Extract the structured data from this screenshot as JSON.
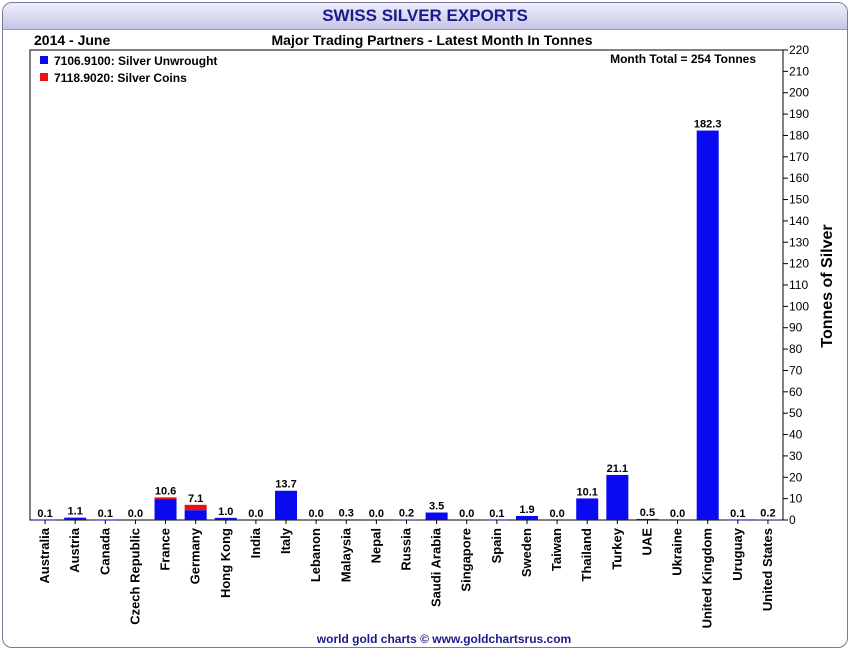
{
  "header": {
    "title": "SWISS SILVER EXPORTS",
    "period": "2014 - June",
    "subtitle": "Major Trading Partners - Latest Month In Tonnes",
    "month_total": "Month Total = 254 Tonnes",
    "footer": "world gold charts © www.goldchartsrus.com"
  },
  "colors": {
    "unwrought": "#0a0af0",
    "coins": "#ee1111",
    "title_text": "#1a1a8c"
  },
  "chart_data": {
    "type": "bar",
    "stacked": true,
    "title": "SWISS SILVER EXPORTS",
    "ylabel": "Tonnes of Silver",
    "ylim": [
      0,
      220
    ],
    "ytick_step": 10,
    "legend_position": "top-left",
    "categories": [
      "Australia",
      "Austria",
      "Canada",
      "Czech Republic",
      "France",
      "Germany",
      "Hong Kong",
      "India",
      "Italy",
      "Lebanon",
      "Malaysia",
      "Nepal",
      "Russia",
      "Saudi Arabia",
      "Singapore",
      "Spain",
      "Sweden",
      "Taiwan",
      "Thailand",
      "Turkey",
      "UAE",
      "Ukraine",
      "United Kingdom",
      "Uruguay",
      "United States"
    ],
    "totals": [
      "0.1",
      "1.1",
      "0.1",
      "0.0",
      "10.6",
      "7.1",
      "1.0",
      "0.0",
      "13.7",
      "0.0",
      "0.3",
      "0.0",
      "0.2",
      "3.5",
      "0.0",
      "0.1",
      "1.9",
      "0.0",
      "10.1",
      "21.1",
      "0.5",
      "0.0",
      "182.3",
      "0.1",
      "0.2"
    ],
    "series": [
      {
        "name": "7106.9100: Silver Unwrought",
        "values": [
          0.1,
          1.1,
          0.1,
          0.0,
          9.8,
          4.6,
          1.0,
          0.0,
          13.7,
          0.0,
          0.3,
          0.0,
          0.2,
          3.5,
          0.0,
          0.1,
          1.9,
          0.0,
          10.1,
          21.1,
          0.5,
          0.0,
          182.3,
          0.1,
          0.2
        ]
      },
      {
        "name": "7118.9020: Silver Coins",
        "values": [
          0,
          0,
          0,
          0,
          0.8,
          2.5,
          0,
          0,
          0,
          0,
          0,
          0,
          0,
          0,
          0,
          0,
          0,
          0,
          0,
          0,
          0,
          0,
          0,
          0,
          0
        ]
      }
    ]
  }
}
